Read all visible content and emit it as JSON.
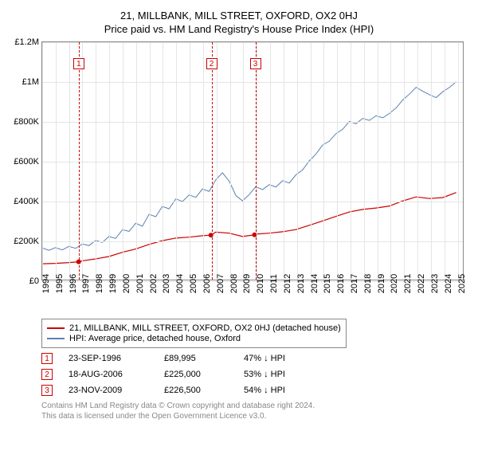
{
  "title": "21, MILLBANK, MILL STREET, OXFORD, OX2 0HJ",
  "subtitle": "Price paid vs. HM Land Registry's House Price Index (HPI)",
  "chart": {
    "type": "line",
    "background_color": "#ffffff",
    "grid_color": "#e5e5e5",
    "border_color": "#888888",
    "x_min": 1994,
    "x_max": 2025.5,
    "x_ticks": [
      1994,
      1995,
      1996,
      1997,
      1998,
      1999,
      2000,
      2001,
      2002,
      2003,
      2004,
      2005,
      2006,
      2007,
      2008,
      2009,
      2010,
      2011,
      2012,
      2013,
      2014,
      2015,
      2016,
      2017,
      2018,
      2019,
      2020,
      2021,
      2022,
      2023,
      2024,
      2025
    ],
    "y_min": 0,
    "y_max": 1200000,
    "y_ticks": [
      {
        "v": 0,
        "label": "£0"
      },
      {
        "v": 200000,
        "label": "£200K"
      },
      {
        "v": 400000,
        "label": "£400K"
      },
      {
        "v": 600000,
        "label": "£600K"
      },
      {
        "v": 800000,
        "label": "£800K"
      },
      {
        "v": 1000000,
        "label": "£1M"
      },
      {
        "v": 1200000,
        "label": "£1.2M"
      }
    ],
    "series": [
      {
        "name": "21, MILLBANK, MILL STREET, OXFORD, OX2 0HJ (detached house)",
        "color": "#cc0000",
        "width": 1.2,
        "points": [
          [
            1994,
            80000
          ],
          [
            1995,
            82000
          ],
          [
            1996,
            86000
          ],
          [
            1996.73,
            89995
          ],
          [
            1997,
            95000
          ],
          [
            1998,
            105000
          ],
          [
            1999,
            117000
          ],
          [
            2000,
            138000
          ],
          [
            2001,
            155000
          ],
          [
            2002,
            178000
          ],
          [
            2003,
            197000
          ],
          [
            2004,
            210000
          ],
          [
            2005,
            215000
          ],
          [
            2006,
            222000
          ],
          [
            2006.63,
            225000
          ],
          [
            2007,
            240000
          ],
          [
            2008,
            235000
          ],
          [
            2009,
            218000
          ],
          [
            2009.9,
            226500
          ],
          [
            2010,
            230000
          ],
          [
            2011,
            235000
          ],
          [
            2012,
            242000
          ],
          [
            2013,
            253000
          ],
          [
            2014,
            275000
          ],
          [
            2015,
            297000
          ],
          [
            2016,
            320000
          ],
          [
            2017,
            342000
          ],
          [
            2018,
            355000
          ],
          [
            2019,
            362000
          ],
          [
            2020,
            372000
          ],
          [
            2021,
            398000
          ],
          [
            2022,
            418000
          ],
          [
            2023,
            410000
          ],
          [
            2024,
            415000
          ],
          [
            2025,
            440000
          ]
        ],
        "markers": [
          {
            "x": 1996.73,
            "y": 89995
          },
          {
            "x": 2006.63,
            "y": 225000
          },
          {
            "x": 2009.9,
            "y": 226500
          }
        ]
      },
      {
        "name": "HPI: Average price, detached house, Oxford",
        "color": "#5b7fb3",
        "width": 1,
        "points": [
          [
            1994,
            160000
          ],
          [
            1994.5,
            148000
          ],
          [
            1995,
            162000
          ],
          [
            1995.5,
            150000
          ],
          [
            1996,
            168000
          ],
          [
            1996.5,
            158000
          ],
          [
            1997,
            180000
          ],
          [
            1997.5,
            172000
          ],
          [
            1998,
            198000
          ],
          [
            1998.5,
            188000
          ],
          [
            1999,
            218000
          ],
          [
            1999.5,
            208000
          ],
          [
            2000,
            252000
          ],
          [
            2000.5,
            244000
          ],
          [
            2001,
            285000
          ],
          [
            2001.5,
            270000
          ],
          [
            2002,
            330000
          ],
          [
            2002.5,
            318000
          ],
          [
            2003,
            370000
          ],
          [
            2003.5,
            358000
          ],
          [
            2004,
            408000
          ],
          [
            2004.5,
            395000
          ],
          [
            2005,
            428000
          ],
          [
            2005.5,
            416000
          ],
          [
            2006,
            458000
          ],
          [
            2006.5,
            446000
          ],
          [
            2007,
            505000
          ],
          [
            2007.5,
            540000
          ],
          [
            2008,
            498000
          ],
          [
            2008.5,
            425000
          ],
          [
            2009,
            398000
          ],
          [
            2009.5,
            430000
          ],
          [
            2010,
            470000
          ],
          [
            2010.5,
            455000
          ],
          [
            2011,
            480000
          ],
          [
            2011.5,
            468000
          ],
          [
            2012,
            500000
          ],
          [
            2012.5,
            488000
          ],
          [
            2013,
            530000
          ],
          [
            2013.5,
            555000
          ],
          [
            2014,
            600000
          ],
          [
            2014.5,
            635000
          ],
          [
            2015,
            680000
          ],
          [
            2015.5,
            700000
          ],
          [
            2016,
            738000
          ],
          [
            2016.5,
            760000
          ],
          [
            2017,
            800000
          ],
          [
            2017.5,
            788000
          ],
          [
            2018,
            815000
          ],
          [
            2018.5,
            805000
          ],
          [
            2019,
            828000
          ],
          [
            2019.5,
            818000
          ],
          [
            2020,
            840000
          ],
          [
            2020.5,
            868000
          ],
          [
            2021,
            908000
          ],
          [
            2021.5,
            938000
          ],
          [
            2022,
            972000
          ],
          [
            2022.5,
            952000
          ],
          [
            2023,
            935000
          ],
          [
            2023.5,
            920000
          ],
          [
            2024,
            950000
          ],
          [
            2024.5,
            972000
          ],
          [
            2025,
            1000000
          ]
        ]
      }
    ],
    "event_markers": [
      {
        "x": 1996.73,
        "num": "1",
        "box_top": 20
      },
      {
        "x": 2006.63,
        "num": "2",
        "box_top": 20
      },
      {
        "x": 2009.9,
        "num": "3",
        "box_top": 20
      }
    ],
    "label_fontsize": 11
  },
  "legend": {
    "items": [
      {
        "color": "#cc0000",
        "label": "21, MILLBANK, MILL STREET, OXFORD, OX2 0HJ (detached house)"
      },
      {
        "color": "#5b7fb3",
        "label": "HPI: Average price, detached house, Oxford"
      }
    ]
  },
  "events": [
    {
      "num": "1",
      "date": "23-SEP-1996",
      "price": "£89,995",
      "delta": "47% ↓ HPI"
    },
    {
      "num": "2",
      "date": "18-AUG-2006",
      "price": "£225,000",
      "delta": "53% ↓ HPI"
    },
    {
      "num": "3",
      "date": "23-NOV-2009",
      "price": "£226,500",
      "delta": "54% ↓ HPI"
    }
  ],
  "footer": {
    "line1": "Contains HM Land Registry data © Crown copyright and database right 2024.",
    "line2": "This data is licensed under the Open Government Licence v3.0."
  }
}
